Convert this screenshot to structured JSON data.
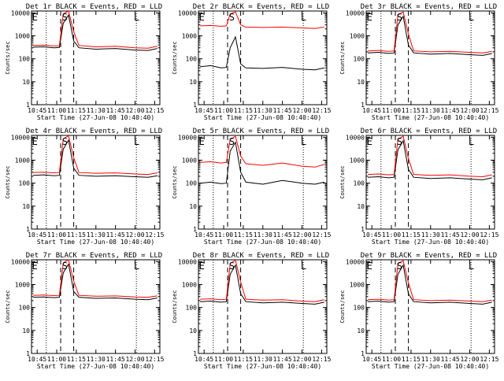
{
  "colors": {
    "events": "#000000",
    "lld": "#ff0000",
    "axis": "#000000",
    "marker": "#000000"
  },
  "shared": {
    "xlabel": "Start Time (27-Jun-08 10:40:40)",
    "ylabel": "Counts/sec",
    "xtick_labels": [
      "10:45",
      "11:00",
      "11:15",
      "11:30",
      "11:45",
      "12:00",
      "12:15"
    ],
    "ytick_labels": [
      "1",
      "10",
      "100",
      "1000",
      "10000"
    ]
  },
  "chart_data": [
    {
      "type": "line",
      "title": "Det 1r BLACK = Events, RED = LLD",
      "xlim": [
        "10:40:40",
        "12:19:00"
      ],
      "ylim": [
        1,
        12000
      ],
      "yscale": "log",
      "xlabel": "Start Time (27-Jun-08 10:40:40)",
      "ylabel": "Counts/sec",
      "time_markers": {
        "E": "10:42",
        "S": "11:05",
        "L": "12:00"
      },
      "dashed_lines": [
        "11:03",
        "11:13"
      ],
      "dotted_lines": [
        "10:52",
        "12:01"
      ],
      "series": [
        {
          "name": "BLACK = Events",
          "x": [
            "10:42",
            "10:50",
            "10:58",
            "11:02",
            "11:05",
            "11:09",
            "11:13",
            "11:17",
            "11:30",
            "11:45",
            "12:00",
            "12:10",
            "12:17"
          ],
          "y": [
            320,
            330,
            300,
            310,
            3500,
            8000,
            600,
            300,
            260,
            280,
            240,
            230,
            280
          ]
        },
        {
          "name": "RED = LLD",
          "x": [
            "10:42",
            "10:50",
            "10:58",
            "11:02",
            "11:05",
            "11:09",
            "11:13",
            "11:17",
            "11:30",
            "11:45",
            "12:00",
            "12:10",
            "12:17"
          ],
          "y": [
            380,
            390,
            360,
            370,
            9000,
            12000,
            1500,
            380,
            330,
            350,
            300,
            290,
            350
          ]
        }
      ]
    },
    {
      "type": "line",
      "title": "Det 2r BLACK = Events, RED = LLD",
      "xlim": [
        "10:40:40",
        "12:19:00"
      ],
      "ylim": [
        1,
        12000
      ],
      "yscale": "log",
      "xlabel": "Start Time (27-Jun-08 10:40:40)",
      "ylabel": "Counts/sec",
      "time_markers": {
        "E": "10:42",
        "S": "11:05",
        "L": "12:00"
      },
      "dashed_lines": [
        "11:03",
        "11:13"
      ],
      "dotted_lines": [
        "10:52",
        "12:01"
      ],
      "series": [
        {
          "name": "BLACK = Events",
          "x": [
            "10:42",
            "10:50",
            "10:58",
            "11:02",
            "11:05",
            "11:09",
            "11:13",
            "11:17",
            "11:30",
            "11:45",
            "12:00",
            "12:10",
            "12:17"
          ],
          "y": [
            45,
            50,
            40,
            42,
            300,
            900,
            60,
            40,
            38,
            42,
            35,
            33,
            40
          ]
        },
        {
          "name": "RED = LLD",
          "x": [
            "10:42",
            "10:50",
            "10:58",
            "11:02",
            "11:05",
            "11:09",
            "11:13",
            "11:17",
            "11:30",
            "11:45",
            "12:00",
            "12:10",
            "12:17"
          ],
          "y": [
            2700,
            2800,
            2600,
            2700,
            9000,
            11000,
            3000,
            2400,
            2300,
            2400,
            2200,
            2100,
            2400
          ]
        }
      ]
    },
    {
      "type": "line",
      "title": "Det 3r BLACK = Events, RED = LLD",
      "xlim": [
        "10:40:40",
        "12:19:00"
      ],
      "ylim": [
        1,
        12000
      ],
      "yscale": "log",
      "xlabel": "Start Time (27-Jun-08 10:40:40)",
      "ylabel": "Counts/sec",
      "time_markers": {
        "E": "10:42",
        "S": "11:05",
        "L": "12:00"
      },
      "dashed_lines": [
        "11:03",
        "11:13"
      ],
      "dotted_lines": [
        "10:52",
        "12:01"
      ],
      "series": [
        {
          "name": "BLACK = Events",
          "x": [
            "10:42",
            "10:50",
            "10:58",
            "11:02",
            "11:05",
            "11:09",
            "11:13",
            "11:17",
            "11:30",
            "11:45",
            "12:00",
            "12:10",
            "12:17"
          ],
          "y": [
            180,
            190,
            170,
            180,
            3000,
            7000,
            400,
            180,
            160,
            170,
            150,
            140,
            170
          ]
        },
        {
          "name": "RED = LLD",
          "x": [
            "10:42",
            "10:50",
            "10:58",
            "11:02",
            "11:05",
            "11:09",
            "11:13",
            "11:17",
            "11:30",
            "11:45",
            "12:00",
            "12:10",
            "12:17"
          ],
          "y": [
            220,
            230,
            210,
            220,
            8000,
            11000,
            1200,
            220,
            200,
            210,
            190,
            180,
            210
          ]
        }
      ]
    },
    {
      "type": "line",
      "title": "Det 4r BLACK = Events, RED = LLD",
      "xlim": [
        "10:40:40",
        "12:19:00"
      ],
      "ylim": [
        1,
        12000
      ],
      "yscale": "log",
      "xlabel": "Start Time (27-Jun-08 10:40:40)",
      "ylabel": "Counts/sec",
      "time_markers": {
        "E": "10:42",
        "S": "11:05",
        "L": "12:00"
      },
      "dashed_lines": [
        "11:03",
        "11:13"
      ],
      "dotted_lines": [
        "10:52",
        "12:01"
      ],
      "series": [
        {
          "name": "BLACK = Events",
          "x": [
            "10:42",
            "10:50",
            "10:58",
            "11:02",
            "11:05",
            "11:09",
            "11:13",
            "11:17",
            "11:30",
            "11:45",
            "12:00",
            "12:10",
            "12:17"
          ],
          "y": [
            220,
            230,
            210,
            220,
            3000,
            7500,
            450,
            220,
            200,
            210,
            190,
            180,
            210
          ]
        },
        {
          "name": "RED = LLD",
          "x": [
            "10:42",
            "10:50",
            "10:58",
            "11:02",
            "11:05",
            "11:09",
            "11:13",
            "11:17",
            "11:30",
            "11:45",
            "12:00",
            "12:10",
            "12:17"
          ],
          "y": [
            290,
            300,
            280,
            290,
            8500,
            11500,
            1300,
            290,
            270,
            280,
            250,
            240,
            280
          ]
        }
      ]
    },
    {
      "type": "line",
      "title": "Det 5r BLACK = Events, RED = LLD",
      "xlim": [
        "10:40:40",
        "12:19:00"
      ],
      "ylim": [
        1,
        12000
      ],
      "yscale": "log",
      "xlabel": "Start Time (27-Jun-08 10:40:40)",
      "ylabel": "Counts/sec",
      "time_markers": {
        "E": "10:42",
        "S": "11:05",
        "L": "12:00"
      },
      "dashed_lines": [
        "11:03",
        "11:13"
      ],
      "dotted_lines": [
        "10:52",
        "12:01"
      ],
      "series": [
        {
          "name": "BLACK = Events",
          "x": [
            "10:42",
            "10:50",
            "10:58",
            "11:02",
            "11:05",
            "11:09",
            "11:13",
            "11:17",
            "11:30",
            "11:45",
            "12:00",
            "12:10",
            "12:17"
          ],
          "y": [
            100,
            110,
            95,
            100,
            2500,
            6000,
            300,
            110,
            90,
            130,
            100,
            90,
            110
          ]
        },
        {
          "name": "RED = LLD",
          "x": [
            "10:42",
            "10:50",
            "10:58",
            "11:02",
            "11:05",
            "11:09",
            "11:13",
            "11:17",
            "11:30",
            "11:45",
            "12:00",
            "12:10",
            "12:17"
          ],
          "y": [
            800,
            850,
            750,
            800,
            8000,
            11000,
            1500,
            700,
            600,
            750,
            550,
            500,
            650
          ]
        }
      ]
    },
    {
      "type": "line",
      "title": "Det 6r BLACK = Events, RED = LLD",
      "xlim": [
        "10:40:40",
        "12:19:00"
      ],
      "ylim": [
        1,
        12000
      ],
      "yscale": "log",
      "xlabel": "Start Time (27-Jun-08 10:40:40)",
      "ylabel": "Counts/sec",
      "time_markers": {
        "E": "10:42",
        "S": "11:05",
        "L": "12:00"
      },
      "dashed_lines": [
        "11:03",
        "11:13"
      ],
      "dotted_lines": [
        "10:52",
        "12:01"
      ],
      "series": [
        {
          "name": "BLACK = Events",
          "x": [
            "10:42",
            "10:50",
            "10:58",
            "11:02",
            "11:05",
            "11:09",
            "11:13",
            "11:17",
            "11:30",
            "11:45",
            "12:00",
            "12:10",
            "12:17"
          ],
          "y": [
            180,
            190,
            170,
            180,
            2800,
            7000,
            400,
            180,
            160,
            170,
            150,
            140,
            170
          ]
        },
        {
          "name": "RED = LLD",
          "x": [
            "10:42",
            "10:50",
            "10:58",
            "11:02",
            "11:05",
            "11:09",
            "11:13",
            "11:17",
            "11:30",
            "11:45",
            "12:00",
            "12:10",
            "12:17"
          ],
          "y": [
            240,
            250,
            230,
            240,
            8000,
            11000,
            1200,
            240,
            220,
            230,
            200,
            190,
            230
          ]
        }
      ]
    },
    {
      "type": "line",
      "title": "Det 7r BLACK = Events, RED = LLD",
      "xlim": [
        "10:40:40",
        "12:19:00"
      ],
      "ylim": [
        1,
        12000
      ],
      "yscale": "log",
      "xlabel": "Start Time (27-Jun-08 10:40:40)",
      "ylabel": "Counts/sec",
      "time_markers": {
        "E": "10:42",
        "S": "11:05",
        "L": "12:00"
      },
      "dashed_lines": [
        "11:03",
        "11:13"
      ],
      "dotted_lines": [
        "10:52",
        "12:01"
      ],
      "series": [
        {
          "name": "BLACK = Events",
          "x": [
            "10:42",
            "10:50",
            "10:58",
            "11:02",
            "11:05",
            "11:09",
            "11:13",
            "11:17",
            "11:30",
            "11:45",
            "12:00",
            "12:10",
            "12:17"
          ],
          "y": [
            280,
            290,
            270,
            280,
            3200,
            7800,
            500,
            280,
            250,
            260,
            230,
            220,
            260
          ]
        },
        {
          "name": "RED = LLD",
          "x": [
            "10:42",
            "10:50",
            "10:58",
            "11:02",
            "11:05",
            "11:09",
            "11:13",
            "11:17",
            "11:30",
            "11:45",
            "12:00",
            "12:10",
            "12:17"
          ],
          "y": [
            340,
            350,
            330,
            340,
            8800,
            12000,
            1400,
            340,
            310,
            320,
            290,
            280,
            320
          ]
        }
      ]
    },
    {
      "type": "line",
      "title": "Det 8r BLACK = Events, RED = LLD",
      "xlim": [
        "10:40:40",
        "12:19:00"
      ],
      "ylim": [
        1,
        12000
      ],
      "yscale": "log",
      "xlabel": "Start Time (27-Jun-08 10:40:40)",
      "ylabel": "Counts/sec",
      "time_markers": {
        "E": "10:42",
        "S": "11:05",
        "L": "12:00"
      },
      "dashed_lines": [
        "11:03",
        "11:13"
      ],
      "dotted_lines": [
        "10:52",
        "12:01"
      ],
      "series": [
        {
          "name": "BLACK = Events",
          "x": [
            "10:42",
            "10:50",
            "10:58",
            "11:02",
            "11:05",
            "11:09",
            "11:13",
            "11:17",
            "11:30",
            "11:45",
            "12:00",
            "12:10",
            "12:17"
          ],
          "y": [
            180,
            190,
            170,
            180,
            2800,
            7000,
            400,
            180,
            160,
            170,
            150,
            140,
            170
          ]
        },
        {
          "name": "RED = LLD",
          "x": [
            "10:42",
            "10:50",
            "10:58",
            "11:02",
            "11:05",
            "11:09",
            "11:13",
            "11:17",
            "11:30",
            "11:45",
            "12:00",
            "12:10",
            "12:17"
          ],
          "y": [
            230,
            240,
            220,
            230,
            8200,
            11500,
            1300,
            230,
            210,
            220,
            190,
            180,
            220
          ]
        }
      ]
    },
    {
      "type": "line",
      "title": "Det 9r BLACK = Events, RED = LLD",
      "xlim": [
        "10:40:40",
        "12:19:00"
      ],
      "ylim": [
        1,
        12000
      ],
      "yscale": "log",
      "xlabel": "Start Time (27-Jun-08 10:40:40)",
      "ylabel": "Counts/sec",
      "time_markers": {
        "E": "10:42",
        "S": "11:05",
        "L": "12:00"
      },
      "dashed_lines": [
        "11:03",
        "11:13"
      ],
      "dotted_lines": [
        "10:52",
        "12:01"
      ],
      "series": [
        {
          "name": "BLACK = Events",
          "x": [
            "10:42",
            "10:50",
            "10:58",
            "11:02",
            "11:05",
            "11:09",
            "11:13",
            "11:17",
            "11:30",
            "11:45",
            "12:00",
            "12:10",
            "12:17"
          ],
          "y": [
            180,
            190,
            170,
            180,
            2800,
            7000,
            400,
            180,
            160,
            170,
            150,
            140,
            170
          ]
        },
        {
          "name": "RED = LLD",
          "x": [
            "10:42",
            "10:50",
            "10:58",
            "11:02",
            "11:05",
            "11:09",
            "11:13",
            "11:17",
            "11:30",
            "11:45",
            "12:00",
            "12:10",
            "12:17"
          ],
          "y": [
            220,
            230,
            210,
            220,
            8000,
            11000,
            1200,
            220,
            200,
            210,
            190,
            180,
            210
          ]
        }
      ]
    }
  ]
}
